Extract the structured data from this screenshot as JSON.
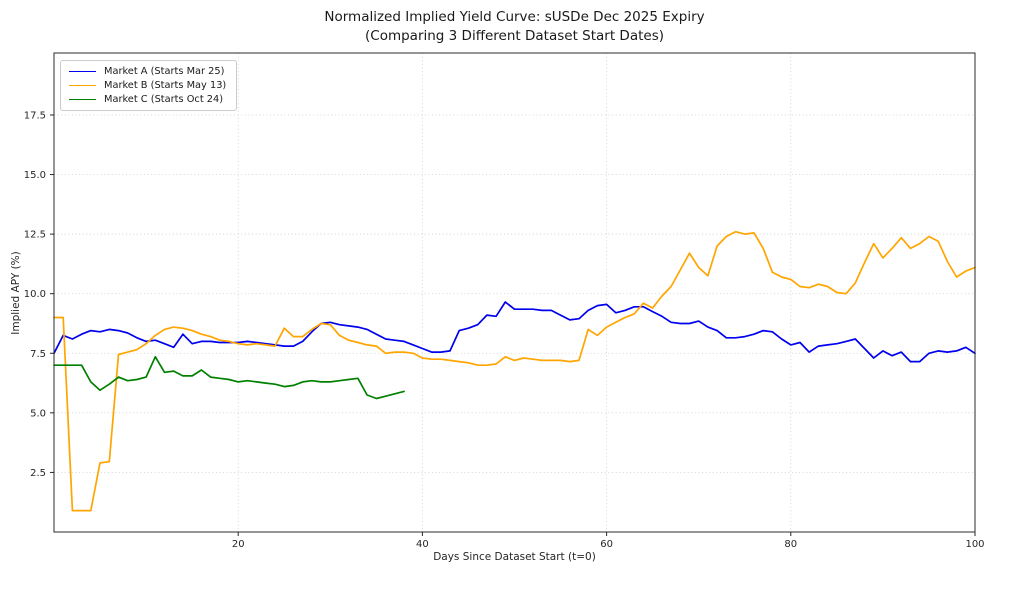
{
  "title": {
    "line1": "Normalized Implied Yield Curve: sUSDe Dec 2025 Expiry",
    "line2": "(Comparing 3 Different Dataset Start Dates)"
  },
  "axes": {
    "xlabel": "Days Since Dataset Start (t=0)",
    "ylabel": "Implied APY (%)",
    "xtick_labels": [
      "20",
      "40",
      "60",
      "80",
      "100"
    ],
    "ytick_labels": [
      "2.5",
      "5.0",
      "7.5",
      "10.0",
      "12.5",
      "15.0",
      "17.5"
    ]
  },
  "chart_data": {
    "type": "line",
    "title": "Normalized Implied Yield Curve: sUSDe Dec 2025 Expiry (Comparing 3 Different Dataset Start Dates)",
    "xlabel": "Days Since Dataset Start (t=0)",
    "ylabel": "Implied APY (%)",
    "xlim": [
      0,
      100
    ],
    "ylim": [
      0,
      20.1
    ],
    "xticks": [
      20,
      40,
      60,
      80,
      100
    ],
    "yticks": [
      2.5,
      5.0,
      7.5,
      10.0,
      12.5,
      15.0,
      17.5
    ],
    "grid": true,
    "grid_style": "dotted",
    "legend_position": "upper-left",
    "background": "#ffffff",
    "series": [
      {
        "name": "Market A (Starts Mar 25)",
        "color": "#0000ee",
        "x_start": 0,
        "values": [
          7.5,
          8.25,
          8.1,
          8.3,
          8.45,
          8.4,
          8.5,
          8.45,
          8.35,
          8.15,
          8.0,
          8.05,
          7.9,
          7.75,
          8.3,
          7.9,
          8.0,
          8.0,
          7.95,
          7.95,
          7.95,
          8.0,
          7.95,
          7.9,
          7.85,
          7.8,
          7.8,
          8.0,
          8.4,
          8.75,
          8.8,
          8.7,
          8.65,
          8.6,
          8.5,
          8.3,
          8.1,
          8.05,
          8.0,
          7.85,
          7.7,
          7.55,
          7.55,
          7.6,
          8.45,
          8.55,
          8.7,
          9.1,
          9.05,
          9.65,
          9.35,
          9.35,
          9.35,
          9.3,
          9.3,
          9.1,
          8.9,
          8.95,
          9.3,
          9.5,
          9.55,
          9.2,
          9.3,
          9.45,
          9.45,
          9.25,
          9.05,
          8.8,
          8.75,
          8.75,
          8.85,
          8.6,
          8.45,
          8.15,
          8.15,
          8.2,
          8.3,
          8.45,
          8.4,
          8.1,
          7.85,
          7.95,
          7.55,
          7.8,
          7.85,
          7.9,
          8.0,
          8.1,
          7.7,
          7.3,
          7.6,
          7.4,
          7.55,
          7.15,
          7.15,
          7.5,
          7.6,
          7.55,
          7.6,
          7.75,
          7.5
        ]
      },
      {
        "name": "Market B (Starts May 13)",
        "color": "#ffa500",
        "x_start": 0,
        "values": [
          9.0,
          9.0,
          0.9,
          0.9,
          0.9,
          2.9,
          2.95,
          7.45,
          7.55,
          7.65,
          7.9,
          8.25,
          8.5,
          8.6,
          8.55,
          8.45,
          8.3,
          8.2,
          8.05,
          8.0,
          7.9,
          7.85,
          7.9,
          7.85,
          7.8,
          8.55,
          8.2,
          8.2,
          8.5,
          8.75,
          8.7,
          8.25,
          8.05,
          7.95,
          7.85,
          7.8,
          7.5,
          7.55,
          7.55,
          7.5,
          7.3,
          7.25,
          7.25,
          7.2,
          7.15,
          7.1,
          7.0,
          7.0,
          7.05,
          7.35,
          7.2,
          7.3,
          7.25,
          7.2,
          7.2,
          7.2,
          7.15,
          7.2,
          8.5,
          8.25,
          8.6,
          8.8,
          9.0,
          9.15,
          9.6,
          9.4,
          9.9,
          10.3,
          11.0,
          11.7,
          11.1,
          10.75,
          12.0,
          12.4,
          12.6,
          12.5,
          12.55,
          11.9,
          10.9,
          10.7,
          10.6,
          10.3,
          10.25,
          10.4,
          10.3,
          10.05,
          10.0,
          10.45,
          11.3,
          12.1,
          11.5,
          11.9,
          12.35,
          11.9,
          12.1,
          12.4,
          12.2,
          11.35,
          10.7,
          10.95,
          11.1
        ]
      },
      {
        "name": "Market C (Starts Oct 24)",
        "color": "#008000",
        "x_start": 0,
        "values": [
          7.0,
          7.0,
          7.0,
          7.0,
          6.3,
          5.95,
          6.2,
          6.5,
          6.35,
          6.4,
          6.5,
          7.35,
          6.7,
          6.75,
          6.55,
          6.55,
          6.8,
          6.5,
          6.45,
          6.4,
          6.3,
          6.35,
          6.3,
          6.25,
          6.2,
          6.1,
          6.15,
          6.3,
          6.35,
          6.3,
          6.3,
          6.35,
          6.4,
          6.45,
          5.75,
          5.6,
          5.7,
          5.8,
          5.9
        ]
      }
    ]
  },
  "legend": {
    "items": [
      {
        "label": "Market A (Starts Mar 25)",
        "color": "#0000ee"
      },
      {
        "label": "Market B (Starts May 13)",
        "color": "#ffa500"
      },
      {
        "label": "Market C (Starts Oct 24)",
        "color": "#008000"
      }
    ]
  },
  "style": {
    "spine_color": "#2b2b2b",
    "grid_color": "#c9c9c9",
    "tick_color": "#262626",
    "line_width": 1.7
  }
}
